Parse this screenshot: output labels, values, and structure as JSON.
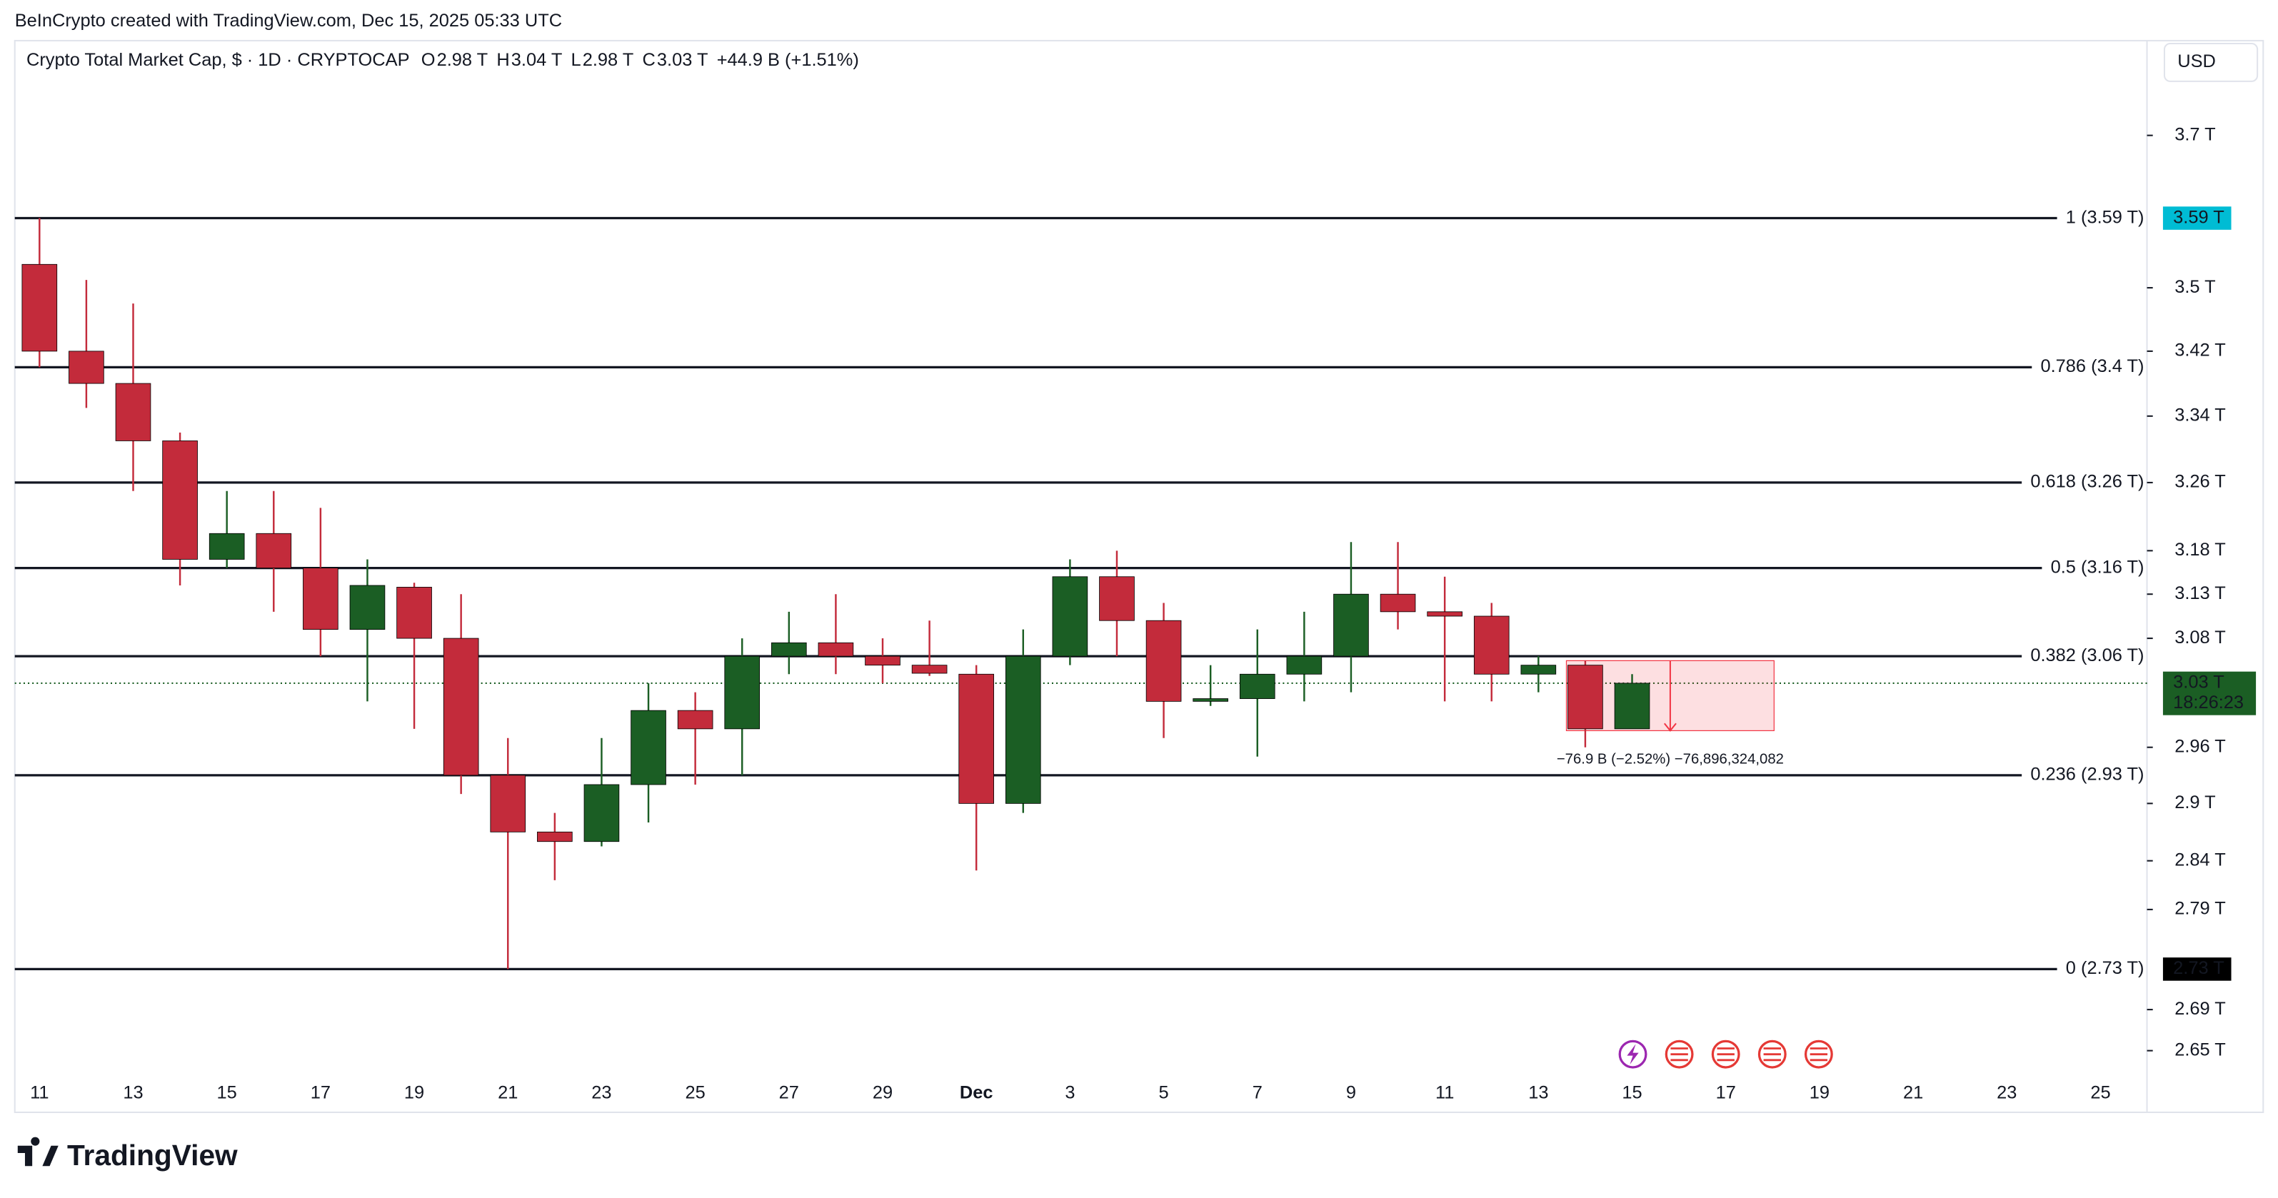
{
  "header": {
    "credit": "BeInCrypto created with TradingView.com, Dec 15, 2025 05:33 UTC",
    "currency": "USD",
    "logo": "TradingView"
  },
  "chart_data": {
    "type": "candlestick",
    "title": "Crypto Total Market Cap, $ · 1D · CRYPTOCAP",
    "ohlc_legend": [
      {
        "key": "O",
        "value": "2.98 T"
      },
      {
        "key": "H",
        "value": "3.04 T"
      },
      {
        "key": "L",
        "value": "2.98 T"
      },
      {
        "key": "C",
        "value": "3.03 T"
      }
    ],
    "change": "+44.9 B (+1.51%)",
    "x_labels": [
      "11",
      "13",
      "15",
      "17",
      "19",
      "21",
      "23",
      "25",
      "27",
      "29",
      "Dec",
      "3",
      "5",
      "7",
      "9",
      "11",
      "13",
      "15",
      "17",
      "19",
      "21",
      "23",
      "25"
    ],
    "open": [
      3.53,
      3.42,
      3.38,
      3.31,
      3.17,
      3.2,
      3.16,
      3.09,
      3.138,
      3.08,
      2.93,
      2.87,
      2.86,
      2.92,
      3.0,
      2.98,
      3.06,
      3.075,
      3.06,
      3.05,
      3.04,
      2.9,
      3.06,
      3.15,
      3.1,
      3.01,
      3.013,
      3.04,
      3.06,
      3.13,
      3.11,
      3.105,
      3.04,
      3.05,
      2.98
    ],
    "high": [
      3.59,
      3.51,
      3.48,
      3.32,
      3.25,
      3.25,
      3.23,
      3.17,
      3.143,
      3.13,
      2.97,
      2.89,
      2.97,
      3.03,
      3.02,
      3.08,
      3.11,
      3.13,
      3.08,
      3.1,
      3.05,
      3.09,
      3.17,
      3.18,
      3.12,
      3.05,
      3.09,
      3.11,
      3.19,
      3.19,
      3.15,
      3.12,
      3.06,
      3.055,
      3.04
    ],
    "low": [
      3.4,
      3.35,
      3.25,
      3.14,
      3.16,
      3.11,
      3.06,
      3.01,
      2.98,
      2.91,
      2.73,
      2.82,
      2.855,
      2.88,
      2.92,
      2.93,
      3.04,
      3.04,
      3.03,
      3.038,
      2.83,
      2.89,
      3.05,
      3.06,
      2.97,
      3.005,
      2.95,
      3.01,
      3.02,
      3.09,
      3.01,
      3.01,
      3.02,
      2.96,
      2.98
    ],
    "close": [
      3.42,
      3.38,
      3.31,
      3.17,
      3.2,
      3.16,
      3.09,
      3.14,
      3.08,
      2.93,
      2.87,
      2.86,
      2.92,
      3.0,
      2.98,
      3.06,
      3.075,
      3.06,
      3.05,
      3.041,
      2.9,
      3.06,
      3.15,
      3.1,
      3.01,
      3.013,
      3.04,
      3.06,
      3.13,
      3.11,
      3.105,
      3.04,
      3.05,
      2.98,
      3.03
    ],
    "up_color": "#1b5e24",
    "down_color": "#c32b3b",
    "ylim": [
      2.627,
      3.826
    ],
    "log_scale": true,
    "yticks": [
      {
        "value": 3.7,
        "label": "3.7 T"
      },
      {
        "value": 3.5,
        "label": "3.5 T"
      },
      {
        "value": 3.42,
        "label": "3.42 T"
      },
      {
        "value": 3.34,
        "label": "3.34 T"
      },
      {
        "value": 3.26,
        "label": "3.26 T"
      },
      {
        "value": 3.18,
        "label": "3.18 T"
      },
      {
        "value": 3.13,
        "label": "3.13 T"
      },
      {
        "value": 3.08,
        "label": "3.08 T"
      },
      {
        "value": 2.96,
        "label": "2.96 T"
      },
      {
        "value": 2.9,
        "label": "2.9 T"
      },
      {
        "value": 2.84,
        "label": "2.84 T"
      },
      {
        "value": 2.79,
        "label": "2.79 T"
      },
      {
        "value": 2.69,
        "label": "2.69 T"
      },
      {
        "value": 2.65,
        "label": "2.65 T"
      }
    ],
    "fib_levels": [
      {
        "value": 3.59,
        "label": "1 (3.59 T)"
      },
      {
        "value": 3.4,
        "label": "0.786 (3.4 T)"
      },
      {
        "value": 3.26,
        "label": "0.618 (3.26 T)"
      },
      {
        "value": 3.16,
        "label": "0.5 (3.16 T)"
      },
      {
        "value": 3.06,
        "label": "0.382 (3.06 T)"
      },
      {
        "value": 2.93,
        "label": "0.236 (2.93 T)"
      },
      {
        "value": 2.73,
        "label": "0 (2.73 T)"
      }
    ],
    "level_badges": [
      {
        "value": 3.59,
        "label": "3.59 T",
        "color": "#00bcd4"
      },
      {
        "value": 2.73,
        "label": "2.73 T",
        "color": "#000000"
      }
    ],
    "last_price": {
      "value": 3.03,
      "label": "3.03 T",
      "countdown": "18:26:23",
      "color": "#1b5e24"
    },
    "measure": {
      "label": "−76.9 B (−2.52%) −76,896,324,082",
      "from": 3.055,
      "to": 2.978
    }
  }
}
